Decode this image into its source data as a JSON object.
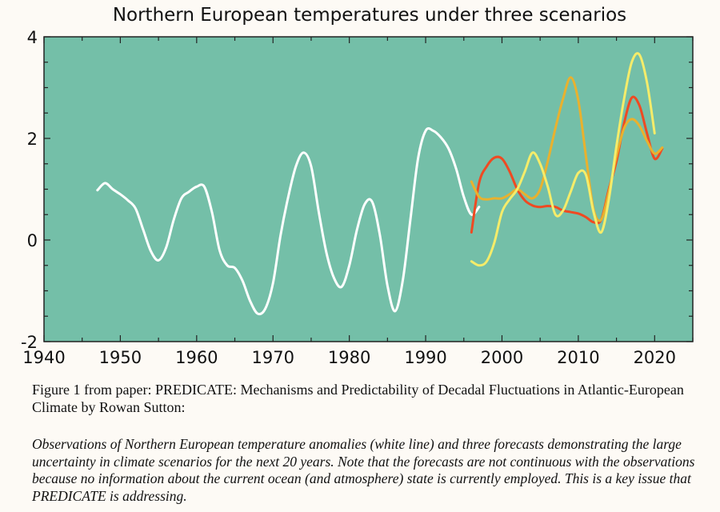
{
  "chart_data": {
    "type": "line",
    "title": "Northern European temperatures under three scenarios",
    "xlabel": "",
    "ylabel": "",
    "xlim": [
      1940,
      2025
    ],
    "ylim": [
      -2,
      4
    ],
    "xticks": [
      1940,
      1950,
      1960,
      1970,
      1980,
      1990,
      2000,
      2010,
      2020
    ],
    "yticks": [
      -2,
      0,
      2,
      4
    ],
    "grid": false,
    "legend": "none",
    "background_color": "#74bfa8",
    "series": [
      {
        "color": "#ffffff",
        "points": [
          [
            1947,
            0.98
          ],
          [
            1948,
            1.12
          ],
          [
            1949,
            1.0
          ],
          [
            1950,
            0.9
          ],
          [
            1951,
            0.78
          ],
          [
            1952,
            0.62
          ],
          [
            1953,
            0.2
          ],
          [
            1954,
            -0.22
          ],
          [
            1955,
            -0.4
          ],
          [
            1956,
            -0.15
          ],
          [
            1957,
            0.4
          ],
          [
            1958,
            0.82
          ],
          [
            1959,
            0.95
          ],
          [
            1960,
            1.05
          ],
          [
            1961,
            1.05
          ],
          [
            1962,
            0.55
          ],
          [
            1963,
            -0.2
          ],
          [
            1964,
            -0.5
          ],
          [
            1965,
            -0.55
          ],
          [
            1966,
            -0.8
          ],
          [
            1967,
            -1.2
          ],
          [
            1968,
            -1.45
          ],
          [
            1969,
            -1.35
          ],
          [
            1970,
            -0.85
          ],
          [
            1971,
            0.1
          ],
          [
            1972,
            0.85
          ],
          [
            1973,
            1.45
          ],
          [
            1974,
            1.72
          ],
          [
            1975,
            1.45
          ],
          [
            1976,
            0.55
          ],
          [
            1977,
            -0.25
          ],
          [
            1978,
            -0.75
          ],
          [
            1979,
            -0.92
          ],
          [
            1980,
            -0.5
          ],
          [
            1981,
            0.2
          ],
          [
            1982,
            0.7
          ],
          [
            1983,
            0.75
          ],
          [
            1984,
            0.1
          ],
          [
            1985,
            -0.9
          ],
          [
            1986,
            -1.4
          ],
          [
            1987,
            -0.8
          ],
          [
            1988,
            0.4
          ],
          [
            1989,
            1.6
          ],
          [
            1990,
            2.15
          ],
          [
            1991,
            2.15
          ],
          [
            1992,
            2.02
          ],
          [
            1993,
            1.8
          ],
          [
            1994,
            1.4
          ],
          [
            1995,
            0.85
          ],
          [
            1996,
            0.5
          ],
          [
            1997,
            0.65
          ]
        ]
      },
      {
        "color": "#ef4a22",
        "points": [
          [
            1996,
            0.15
          ],
          [
            1997,
            1.12
          ],
          [
            1998,
            1.45
          ],
          [
            1999,
            1.62
          ],
          [
            2000,
            1.6
          ],
          [
            2001,
            1.35
          ],
          [
            2002,
            1.0
          ],
          [
            2003,
            0.78
          ],
          [
            2004,
            0.68
          ],
          [
            2005,
            0.65
          ],
          [
            2006,
            0.67
          ],
          [
            2007,
            0.65
          ],
          [
            2008,
            0.58
          ],
          [
            2009,
            0.55
          ],
          [
            2010,
            0.52
          ],
          [
            2011,
            0.45
          ],
          [
            2012,
            0.35
          ],
          [
            2013,
            0.4
          ],
          [
            2014,
            1.0
          ],
          [
            2015,
            1.55
          ],
          [
            2016,
            2.3
          ],
          [
            2017,
            2.8
          ],
          [
            2018,
            2.65
          ],
          [
            2019,
            2.1
          ],
          [
            2020,
            1.6
          ],
          [
            2021,
            1.8
          ]
        ]
      },
      {
        "color": "#e9b12e",
        "points": [
          [
            1996,
            1.15
          ],
          [
            1997,
            0.85
          ],
          [
            1998,
            0.8
          ],
          [
            1999,
            0.82
          ],
          [
            2000,
            0.82
          ],
          [
            2001,
            0.9
          ],
          [
            2002,
            1.0
          ],
          [
            2003,
            0.9
          ],
          [
            2004,
            0.82
          ],
          [
            2005,
            1.0
          ],
          [
            2006,
            1.55
          ],
          [
            2007,
            2.2
          ],
          [
            2008,
            2.78
          ],
          [
            2009,
            3.2
          ],
          [
            2010,
            2.75
          ],
          [
            2011,
            1.65
          ],
          [
            2012,
            0.6
          ],
          [
            2013,
            0.4
          ],
          [
            2014,
            0.95
          ],
          [
            2015,
            1.65
          ],
          [
            2016,
            2.2
          ],
          [
            2017,
            2.38
          ],
          [
            2018,
            2.25
          ],
          [
            2019,
            1.95
          ],
          [
            2020,
            1.7
          ],
          [
            2021,
            1.82
          ]
        ]
      },
      {
        "color": "#f5ec6a",
        "points": [
          [
            1996,
            -0.42
          ],
          [
            1997,
            -0.5
          ],
          [
            1998,
            -0.42
          ],
          [
            1999,
            -0.05
          ],
          [
            2000,
            0.55
          ],
          [
            2001,
            0.8
          ],
          [
            2002,
            1.0
          ],
          [
            2003,
            1.35
          ],
          [
            2004,
            1.72
          ],
          [
            2005,
            1.5
          ],
          [
            2006,
            1.05
          ],
          [
            2007,
            0.5
          ],
          [
            2008,
            0.58
          ],
          [
            2009,
            0.95
          ],
          [
            2010,
            1.32
          ],
          [
            2011,
            1.28
          ],
          [
            2012,
            0.55
          ],
          [
            2013,
            0.15
          ],
          [
            2014,
            0.8
          ],
          [
            2015,
            1.85
          ],
          [
            2016,
            2.78
          ],
          [
            2017,
            3.5
          ],
          [
            2018,
            3.65
          ],
          [
            2019,
            3.1
          ],
          [
            2020,
            2.1
          ]
        ]
      }
    ]
  },
  "caption": {
    "title": "Figure 1 from paper: PREDICATE: Mechanisms and Predictability of Decadal Fluctuations in Atlantic-European Climate by Rowan Sutton:",
    "description": "Observations of Northern European temperature anomalies (white line) and three forecasts demonstrating the large uncertainty in climate scenarios for the next 20 years. Note that the forecasts are not continuous with the observations because no information about the current ocean (and atmosphere) state is currently employed. This is a key issue that PREDICATE is addressing."
  }
}
